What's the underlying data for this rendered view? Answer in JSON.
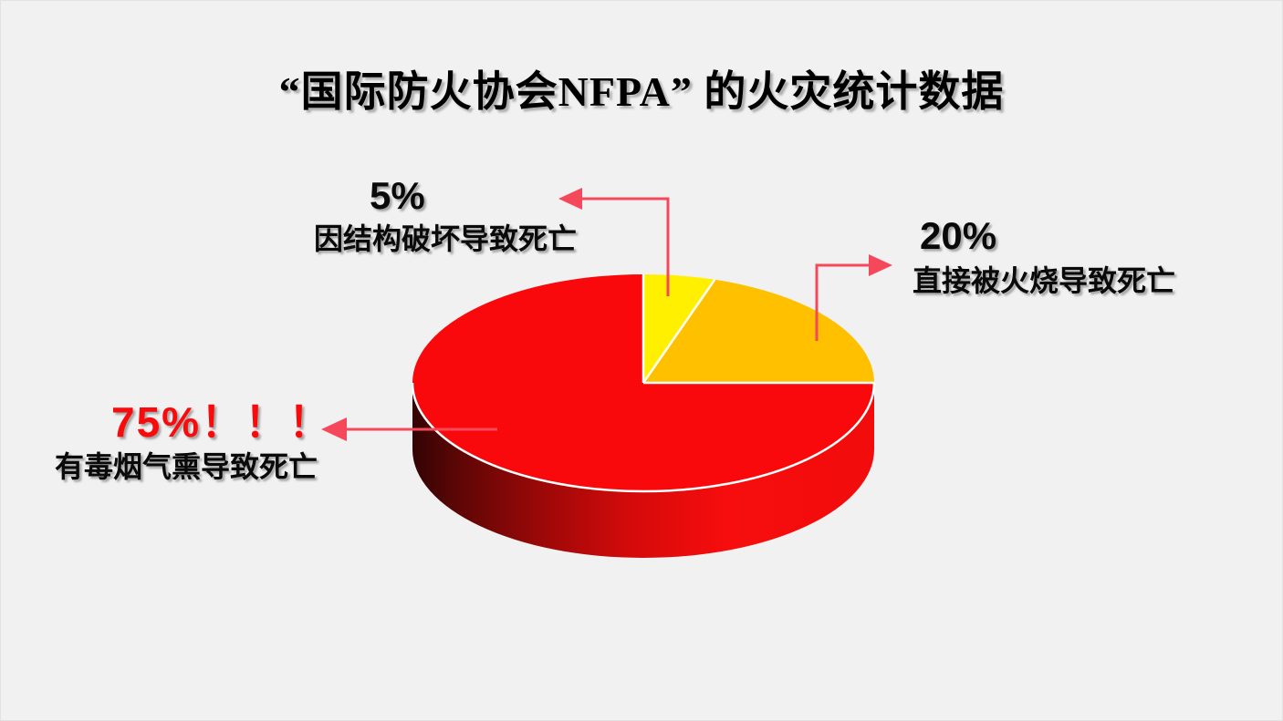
{
  "page": {
    "kind": "presentation-slide",
    "background": "#F1F1F1"
  },
  "chart_data": {
    "type": "pie",
    "projection": "3d",
    "title": "“国际防火协会NFPA” 的火灾统计数据",
    "direction": "clockwise",
    "start_angle_deg": 0,
    "legend": "none",
    "grid": "off",
    "border_color": "#FFFFFF",
    "arrow_color": "#F5495B",
    "slices": [
      {
        "id": "slice-5pct",
        "value": 5,
        "value_label": "5%",
        "label": "因结构破坏导致死亡",
        "color": "#FFF000"
      },
      {
        "id": "slice-20pct",
        "value": 20,
        "value_label": "20%",
        "label": "直接被火烧导致死亡",
        "color": "#FFC000"
      },
      {
        "id": "slice-75pct",
        "value": 75,
        "value_label": "75%！！！",
        "label": "有毒烟气熏导致死亡",
        "color": "#F9090B",
        "value_label_color": "#FA0A0A",
        "side_gradient": [
          "#330404",
          "#5E0606",
          "#990808",
          "#D40A0A",
          "#F70D0D",
          "#F20C0C"
        ]
      }
    ]
  }
}
